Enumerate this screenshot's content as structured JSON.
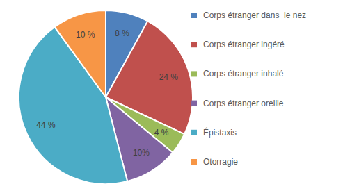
{
  "chart_data": {
    "type": "pie",
    "categories": [
      "Corps étranger dans  le nez",
      "Corps étranger ingéré",
      "Corps étranger inhalé",
      "Corps étranger oreille",
      "Épistaxis",
      "Otorragie"
    ],
    "values": [
      8,
      24,
      4,
      10,
      44,
      10
    ],
    "value_labels": [
      "8 %",
      "24 %",
      "4 %",
      "10%",
      "44 %",
      "10 %"
    ],
    "colors": [
      "#4f81bd",
      "#c0504d",
      "#9bbb59",
      "#8064a2",
      "#4bacc6",
      "#f79646"
    ],
    "legend": "right",
    "data_labels": true
  }
}
